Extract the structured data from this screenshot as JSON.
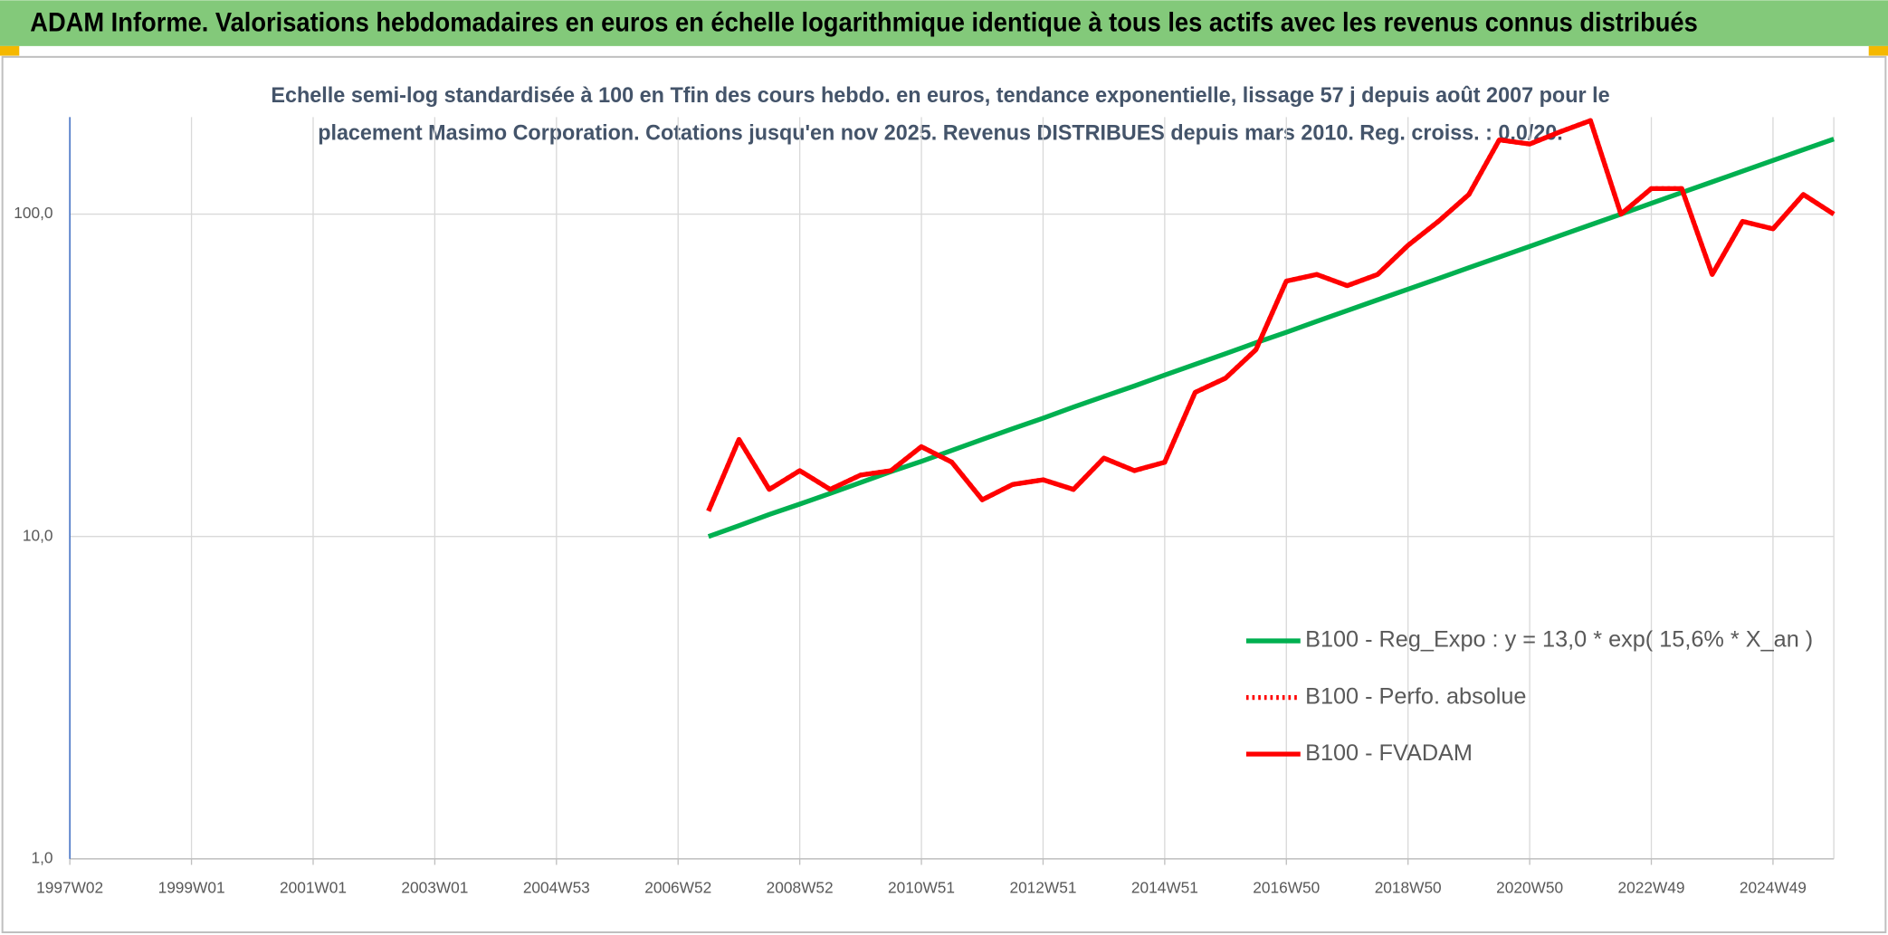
{
  "header": {
    "title": "ADAM Informe. Valorisations hebdomadaires en euros en échelle logarithmique identique à tous les actifs avec les revenus connus distribués"
  },
  "chart_data": {
    "type": "line",
    "title": [
      "Echelle semi-log standardisée à 100 en Tfin des cours hebdo. en euros, tendance exponentielle, lissage 57 j depuis août 2007 pour le",
      "placement Masimo Corporation. Cotations jusqu'en nov 2025. Revenus DISTRIBUES depuis mars 2010. Reg. croiss. : 0,0/20."
    ],
    "categories": [
      "1997W02",
      null,
      null,
      null,
      "1999W01",
      null,
      null,
      null,
      "2001W01",
      null,
      null,
      null,
      "2003W01",
      null,
      null,
      null,
      "2004W53",
      null,
      null,
      null,
      "2006W52",
      null,
      null,
      null,
      "2008W52",
      null,
      null,
      null,
      "2010W51",
      null,
      null,
      null,
      "2012W51",
      null,
      null,
      null,
      "2014W51",
      null,
      null,
      null,
      "2016W50",
      null,
      null,
      null,
      "2018W50",
      null,
      null,
      null,
      "2020W50",
      null,
      null,
      null,
      "2022W49",
      null,
      null,
      null,
      "2024W49",
      null,
      null
    ],
    "series": [
      {
        "name": "B100 - Reg_Expo : y = 13,0 * exp( 15,6% *  X_an )",
        "color": "#00b050",
        "style": "solid",
        "values": [
          null,
          null,
          null,
          null,
          null,
          null,
          null,
          null,
          null,
          null,
          null,
          null,
          null,
          null,
          null,
          null,
          null,
          null,
          null,
          null,
          null,
          10,
          10.8,
          11.7,
          12.6,
          13.6,
          14.7,
          15.9,
          17.1,
          18.5,
          20.0,
          21.6,
          23.3,
          25.2,
          27.2,
          29.3,
          31.7,
          34.2,
          36.9,
          39.9,
          43.0,
          46.5,
          50.2,
          54.2,
          58.5,
          63.1,
          68.2,
          73.6,
          79.4,
          85.8,
          92.6,
          100,
          108,
          116.6,
          125.9,
          135.9,
          146.7,
          158.4,
          171
        ]
      },
      {
        "name": "B100 - Perfo. absolue",
        "color": "#ff0000",
        "style": "dotted",
        "values": [
          null,
          null,
          null,
          null,
          null,
          null,
          null,
          null,
          null,
          null,
          null,
          null,
          null,
          null,
          null,
          null,
          null,
          null,
          null,
          null,
          null,
          12,
          20,
          14,
          16,
          14,
          15.5,
          16,
          19,
          17,
          13,
          14.5,
          15,
          14,
          17.5,
          16,
          17,
          28,
          31,
          38,
          62,
          65,
          60,
          65,
          80,
          95,
          115,
          170,
          165,
          180,
          195,
          100,
          120,
          120,
          65,
          95,
          90,
          115,
          100
        ]
      },
      {
        "name": "B100 - FVADAM",
        "color": "#ff0000",
        "style": "solid",
        "values": [
          null,
          null,
          null,
          null,
          null,
          null,
          null,
          null,
          null,
          null,
          null,
          null,
          null,
          null,
          null,
          null,
          null,
          null,
          null,
          null,
          null,
          12,
          20,
          14,
          16,
          14,
          15.5,
          16,
          19,
          17,
          13,
          14.5,
          15,
          14,
          17.5,
          16,
          17,
          28,
          31,
          38,
          62,
          65,
          60,
          65,
          80,
          95,
          115,
          170,
          165,
          180,
          195,
          100,
          120,
          120,
          65,
          95,
          90,
          115,
          100
        ]
      }
    ],
    "ylim": [
      1,
      200
    ],
    "yticks": [
      {
        "value": 1,
        "label": "1,0"
      },
      {
        "value": 10,
        "label": "10,0"
      },
      {
        "value": 100,
        "label": "100,0"
      }
    ],
    "log_scale": true,
    "grid": true,
    "legend": "right"
  }
}
